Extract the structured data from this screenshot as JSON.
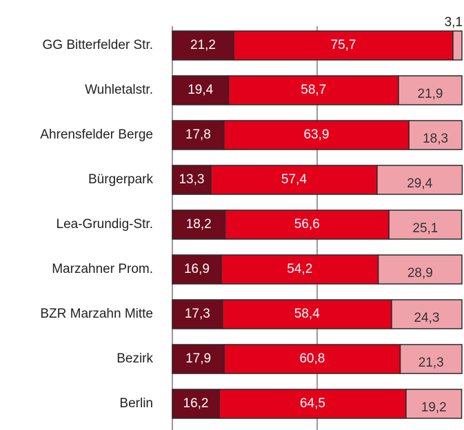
{
  "chart_data": {
    "type": "stacked-barh",
    "categories": [
      "GG Bitterfelder Str.",
      "Wuhletalstr.",
      "Ahrensfelder Berge",
      "Bürgerpark",
      "Lea-Grundig-Str.",
      "Marzahner Prom.",
      "BZR Marzahn Mitte",
      "Bezirk",
      "Berlin"
    ],
    "series": [
      {
        "color": "#6e0b1c",
        "label_color": "#ffffff",
        "values": [
          21.2,
          19.4,
          17.8,
          13.3,
          18.2,
          16.9,
          17.3,
          17.9,
          16.2
        ],
        "value_labels": [
          "21,2",
          "19,4",
          "17,8",
          "13,3",
          "18,2",
          "16,9",
          "17,3",
          "17,9",
          "16,2"
        ]
      },
      {
        "color": "#e3001b",
        "label_color": "#ffffff",
        "values": [
          75.7,
          58.7,
          63.9,
          57.4,
          56.6,
          54.2,
          58.4,
          60.8,
          64.5
        ],
        "value_labels": [
          "75,7",
          "58,7",
          "63,9",
          "57,4",
          "56,6",
          "54,2",
          "58,4",
          "60,8",
          "64,5"
        ]
      },
      {
        "color": "#f0a2aa",
        "label_color": "#333333",
        "values": [
          3.1,
          21.9,
          18.3,
          29.4,
          25.1,
          28.9,
          24.3,
          21.3,
          19.2
        ],
        "value_labels": [
          "3,1",
          "21,9",
          "18,3",
          "29,4",
          "25,1",
          "28,9",
          "24,3",
          "21,3",
          "19,2"
        ]
      }
    ],
    "xlim": [
      0,
      100
    ],
    "xticks": [
      0,
      50
    ],
    "grid": true
  }
}
